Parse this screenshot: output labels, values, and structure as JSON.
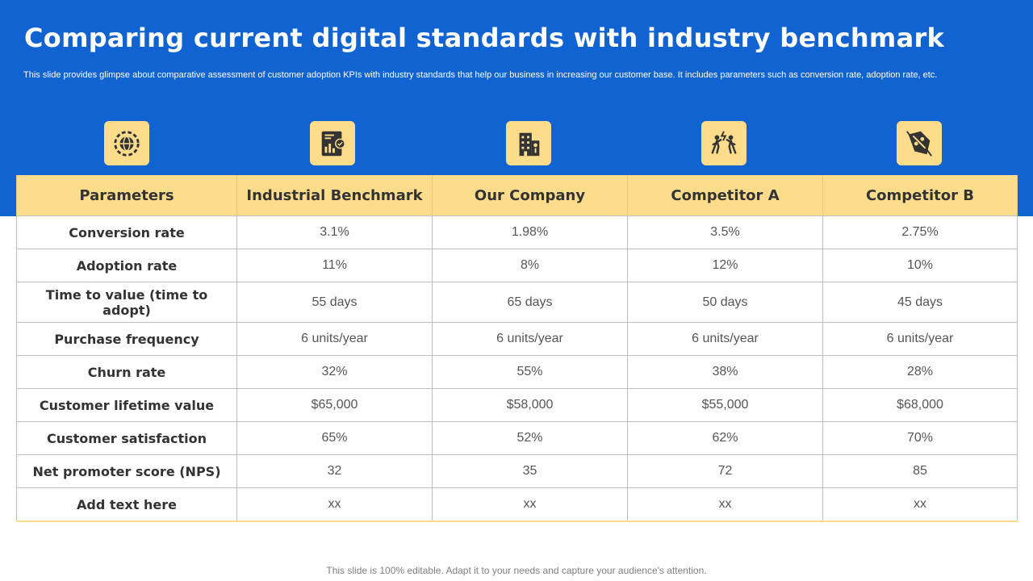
{
  "header": {
    "title": "Comparing current digital standards with industry benchmark",
    "subtitle": "This slide provides glimpse about comparative assessment of customer adoption KPIs with industry standards that help our business in increasing our customer base. It includes parameters such as conversion rate, adoption rate, etc."
  },
  "icons": [
    "gear-globe-icon",
    "report-chart-icon",
    "building-icon",
    "competing-people-icon",
    "price-tag-icon"
  ],
  "table": {
    "headers": [
      "Parameters",
      "Industrial Benchmark",
      "Our Company",
      "Competitor A",
      "Competitor B"
    ],
    "rows": [
      {
        "parameter": "Conversion rate",
        "values": [
          "3.1%",
          "1.98%",
          "3.5%",
          "2.75%"
        ]
      },
      {
        "parameter": "Adoption rate",
        "values": [
          "11%",
          "8%",
          "12%",
          "10%"
        ]
      },
      {
        "parameter": "Time to value (time to adopt)",
        "values": [
          "55 days",
          "65 days",
          "50 days",
          "45 days"
        ]
      },
      {
        "parameter": "Purchase frequency",
        "values": [
          "6 units/year",
          "6 units/year",
          "6 units/year",
          "6 units/year"
        ]
      },
      {
        "parameter": "Churn rate",
        "values": [
          "32%",
          "55%",
          "38%",
          "28%"
        ]
      },
      {
        "parameter": "Customer lifetime value",
        "values": [
          "$65,000",
          "$58,000",
          "$55,000",
          "$68,000"
        ]
      },
      {
        "parameter": "Customer satisfaction",
        "values": [
          "65%",
          "52%",
          "62%",
          "70%"
        ]
      },
      {
        "parameter": "Net promoter score (NPS)",
        "values": [
          "32",
          "35",
          "72",
          "85"
        ]
      },
      {
        "parameter": "Add text here",
        "values": [
          "xx",
          "xx",
          "xx",
          "xx"
        ]
      }
    ]
  },
  "footer": "This slide is 100% editable. Adapt it to your needs and capture your audience's attention.",
  "colors": {
    "banner": "#1163d1",
    "accent": "#fddd8c",
    "icon": "#333333"
  }
}
